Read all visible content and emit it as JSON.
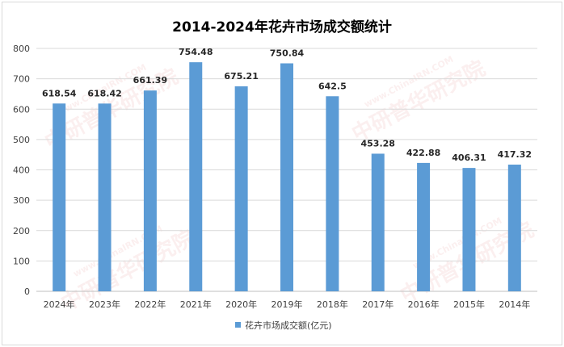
{
  "chart_data": {
    "type": "bar",
    "title": "2014-2024年花卉市场成交额统计",
    "categories": [
      "2024年",
      "2023年",
      "2022年",
      "2021年",
      "2020年",
      "2019年",
      "2018年",
      "2017年",
      "2016年",
      "2015年",
      "2014年"
    ],
    "series": [
      {
        "name": "花卉市场成交额(亿元)",
        "values": [
          618.54,
          618.42,
          661.39,
          754.48,
          675.21,
          750.84,
          642.5,
          453.28,
          422.88,
          406.31,
          417.32
        ],
        "labels": [
          "618.54",
          "618.42",
          "661.39",
          "754.48",
          "675.21",
          "750.84",
          "642.5",
          "453.28",
          "422.88",
          "406.31",
          "417.32"
        ],
        "color": "#5b9bd5"
      }
    ],
    "ylim": [
      0,
      800
    ],
    "yticks": [
      0,
      100,
      200,
      300,
      400,
      500,
      600,
      700,
      800
    ],
    "grid": true,
    "legend": "bottom"
  },
  "watermark": {
    "brand": "中研普华研究院",
    "site": "www.ChinaIRN.COM"
  }
}
